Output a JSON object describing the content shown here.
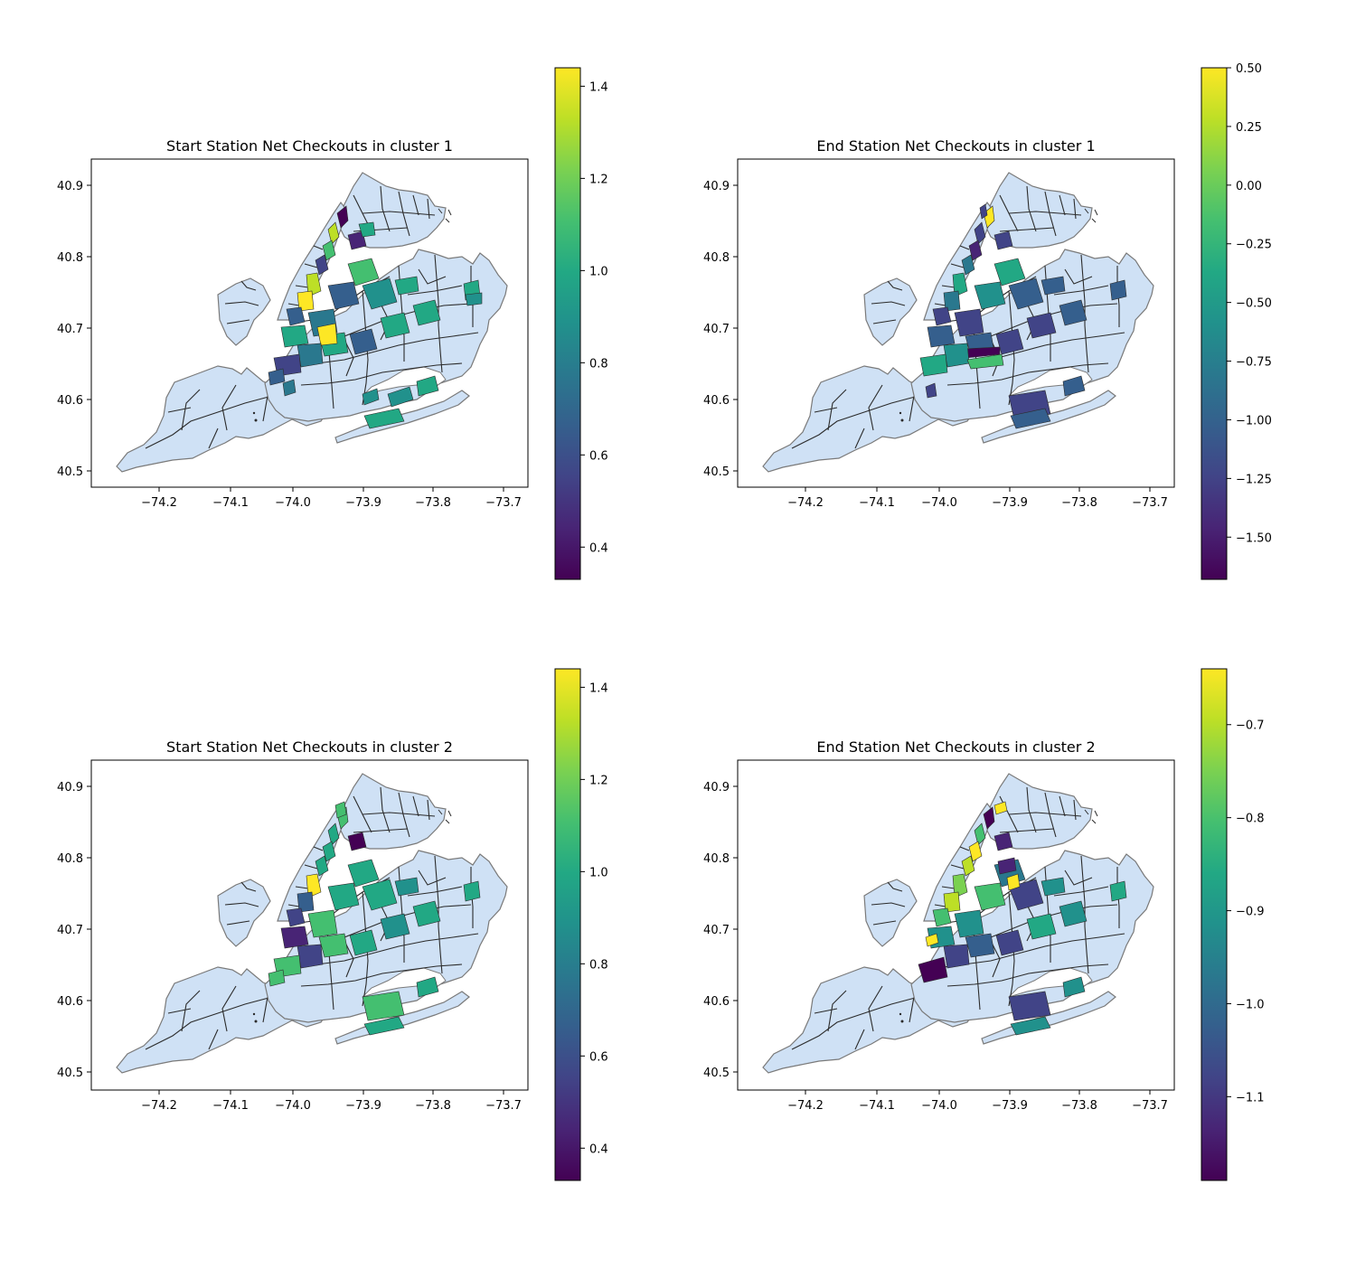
{
  "colors": {
    "base_fill": "#cfe1f5",
    "border": "#2b2b2b",
    "outline": "#7a7a7a",
    "colormap": "viridis"
  },
  "panels": [
    {
      "title": "Start Station Net Checkouts in cluster 1",
      "x_ticks": [
        "−74.2",
        "−74.1",
        "−74.0",
        "−73.9",
        "−73.8",
        "−73.7"
      ],
      "y_ticks": [
        "40.5",
        "40.6",
        "40.7",
        "40.8",
        "40.9"
      ],
      "colorbar": {
        "min": 0.33,
        "max": 1.44,
        "ticks": [
          [
            "0.4",
            0.4
          ],
          [
            "0.6",
            0.6
          ],
          [
            "0.8",
            0.8
          ],
          [
            "1.0",
            1.0
          ],
          [
            "1.2",
            1.2
          ],
          [
            "1.4",
            1.4
          ]
        ]
      }
    },
    {
      "title": "End Station Net Checkouts in cluster 1",
      "x_ticks": [
        "−74.2",
        "−74.1",
        "−74.0",
        "−73.9",
        "−73.8",
        "−73.7"
      ],
      "y_ticks": [
        "40.5",
        "40.6",
        "40.7",
        "40.8",
        "40.9"
      ],
      "colorbar": {
        "min": -1.68,
        "max": 0.5,
        "ticks": [
          [
            "−1.50",
            -1.5
          ],
          [
            "−1.25",
            -1.25
          ],
          [
            "−1.00",
            -1.0
          ],
          [
            "−0.75",
            -0.75
          ],
          [
            "−0.50",
            -0.5
          ],
          [
            "−0.25",
            -0.25
          ],
          [
            "0.00",
            0.0
          ],
          [
            "0.25",
            0.25
          ],
          [
            "0.50",
            0.5
          ]
        ]
      }
    },
    {
      "title": "Start Station Net Checkouts in cluster 2",
      "x_ticks": [
        "−74.2",
        "−74.1",
        "−74.0",
        "−73.9",
        "−73.8",
        "−73.7"
      ],
      "y_ticks": [
        "40.5",
        "40.6",
        "40.7",
        "40.8",
        "40.9"
      ],
      "colorbar": {
        "min": 0.33,
        "max": 1.44,
        "ticks": [
          [
            "0.4",
            0.4
          ],
          [
            "0.6",
            0.6
          ],
          [
            "0.8",
            0.8
          ],
          [
            "1.0",
            1.0
          ],
          [
            "1.2",
            1.2
          ],
          [
            "1.4",
            1.4
          ]
        ]
      }
    },
    {
      "title": "End Station Net Checkouts in cluster 2",
      "x_ticks": [
        "−74.2",
        "−74.1",
        "−74.0",
        "−73.9",
        "−73.8",
        "−73.7"
      ],
      "y_ticks": [
        "40.5",
        "40.6",
        "40.7",
        "40.8",
        "40.9"
      ],
      "colorbar": {
        "min": -1.19,
        "max": -0.64,
        "ticks": [
          [
            "−1.1",
            -1.1
          ],
          [
            "−1.0",
            -1.0
          ],
          [
            "−0.9",
            -0.9
          ],
          [
            "−0.8",
            -0.8
          ],
          [
            "−0.7",
            -0.7
          ]
        ]
      }
    }
  ]
}
